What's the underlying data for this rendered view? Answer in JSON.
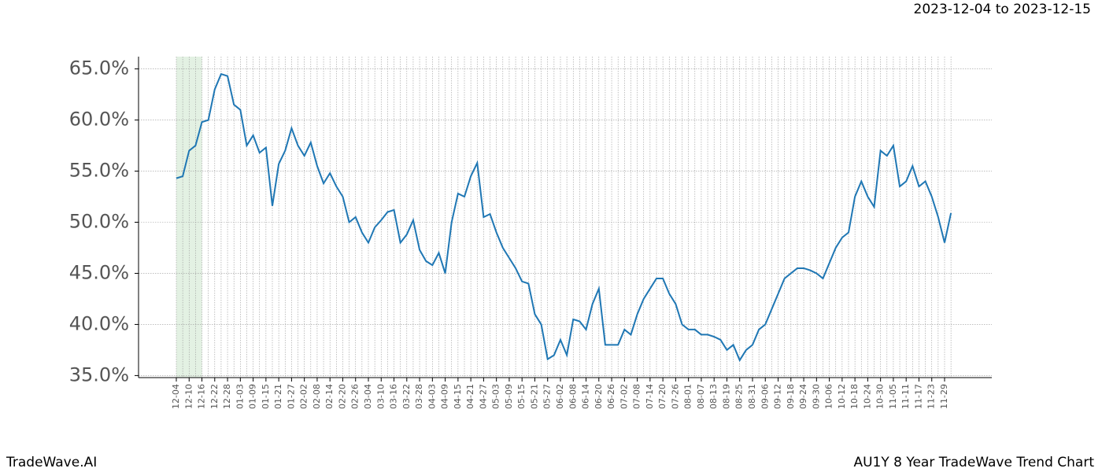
{
  "chart_data": {
    "type": "line",
    "subtitle": "2023-12-04 to 2023-12-15",
    "footer_left": "TradeWave.AI",
    "footer_right": "AU1Y 8 Year TradeWave Trend Chart",
    "categories": [
      "12-04",
      null,
      "12-10",
      null,
      "12-16",
      null,
      "12-22",
      null,
      "12-28",
      null,
      "01-03",
      null,
      "01-09",
      null,
      "01-15",
      null,
      "01-21",
      null,
      "01-27",
      null,
      "02-02",
      null,
      "02-08",
      null,
      "02-14",
      null,
      "02-20",
      null,
      "02-26",
      null,
      "03-04",
      null,
      "03-10",
      null,
      "03-16",
      null,
      "03-22",
      null,
      "03-28",
      null,
      "04-03",
      null,
      "04-09",
      null,
      "04-15",
      null,
      "04-21",
      null,
      "04-27",
      null,
      "05-03",
      null,
      "05-09",
      null,
      "05-15",
      null,
      "05-21",
      null,
      "05-27",
      null,
      "06-02",
      null,
      "06-08",
      null,
      "06-14",
      null,
      "06-20",
      null,
      "06-26",
      null,
      "07-02",
      null,
      "07-08",
      null,
      "07-14",
      null,
      "07-20",
      null,
      "07-26",
      null,
      "08-01",
      null,
      "08-07",
      null,
      "08-13",
      null,
      "08-19",
      null,
      "08-25",
      null,
      "08-31",
      null,
      "09-06",
      null,
      "09-12",
      null,
      "09-18",
      null,
      "09-24",
      null,
      "09-30",
      null,
      "10-06",
      null,
      "10-12",
      null,
      "10-18",
      null,
      "10-24",
      null,
      "10-30",
      null,
      "11-05",
      null,
      "11-11",
      null,
      "11-17",
      null,
      "11-23",
      null,
      "11-29",
      null
    ],
    "series": [
      {
        "color": "#1f77b4",
        "values": [
          54.3,
          54.5,
          57.0,
          57.5,
          59.8,
          60.0,
          63.0,
          64.5,
          64.3,
          61.5,
          61.0,
          57.5,
          58.5,
          56.8,
          57.3,
          51.6,
          55.7,
          57.0,
          59.2,
          57.5,
          56.5,
          57.8,
          55.5,
          53.8,
          54.8,
          53.5,
          52.5,
          50.0,
          50.5,
          49.0,
          48.0,
          49.5,
          50.2,
          51.0,
          51.2,
          48.0,
          48.8,
          50.2,
          47.3,
          46.2,
          45.8,
          47.0,
          45.0,
          50.0,
          52.8,
          52.5,
          54.5,
          55.8,
          50.5,
          50.8,
          49.0,
          47.5,
          46.5,
          45.5,
          44.2,
          44.0,
          41.0,
          40.0,
          36.6,
          37.0,
          38.5,
          37.0,
          40.5,
          40.3,
          39.5,
          42.0,
          43.5,
          38.0,
          38.0,
          38.0,
          39.5,
          39.0,
          41.0,
          42.5,
          43.5,
          44.5,
          44.5,
          43.0,
          42.0,
          40.0,
          39.5,
          39.5,
          39.0,
          39.0,
          38.8,
          38.5,
          37.5,
          38.0,
          36.5,
          37.5,
          38.0,
          39.5,
          40.0,
          41.5,
          43.0,
          44.5,
          45.0,
          45.5,
          45.5,
          45.3,
          45.0,
          44.5,
          46.0,
          47.5,
          48.5,
          49.0,
          52.5,
          54.0,
          52.5,
          51.5,
          57.0,
          56.5,
          57.5,
          53.5,
          54.0,
          55.5,
          53.5,
          54.0,
          52.5,
          50.5,
          48.0,
          50.9
        ]
      }
    ],
    "ylim": [
      34.8,
      66.2
    ],
    "yticks": [
      {
        "value": 35,
        "label": "35.0%"
      },
      {
        "value": 40,
        "label": "40.0%"
      },
      {
        "value": 45,
        "label": "45.0%"
      },
      {
        "value": 50,
        "label": "50.0%"
      },
      {
        "value": 55,
        "label": "55.0%"
      },
      {
        "value": 60,
        "label": "60.0%"
      },
      {
        "value": 65,
        "label": "65.0%"
      }
    ],
    "grid": true,
    "highlight": {
      "from": "12-04",
      "to": "12-16",
      "color": "#e3f1e3"
    }
  }
}
